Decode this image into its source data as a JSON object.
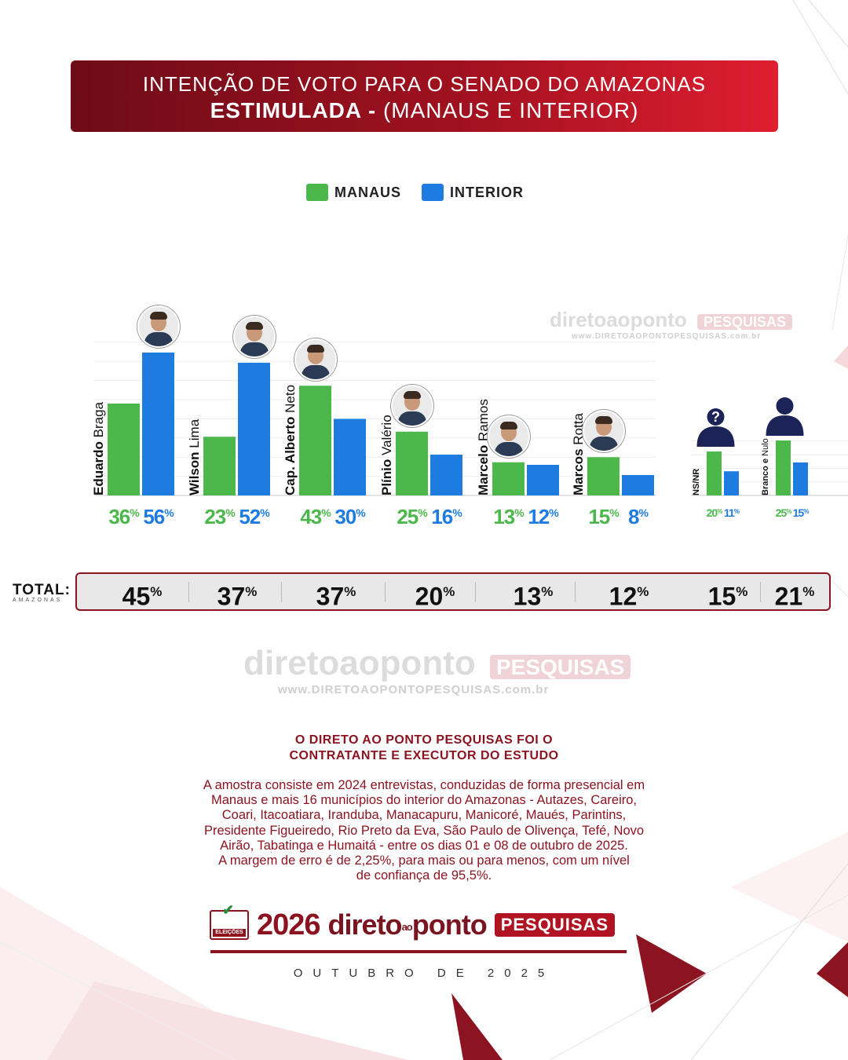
{
  "header": {
    "line1": "INTENÇÃO DE VOTO PARA O SENADO DO AMAZONAS",
    "line2_bold": "ESTIMULADA -",
    "line2_rest": "(MANAUS E INTERIOR)"
  },
  "legend": [
    {
      "label": "MANAUS",
      "color": "#4cb84c"
    },
    {
      "label": "INTERIOR",
      "color": "#1e7be0"
    }
  ],
  "colors": {
    "manaus": "#4cb84c",
    "interior": "#1e7be0",
    "brand": "#8b1420",
    "silhouette": "#1c2457"
  },
  "watermark": {
    "brand": "diretoaoponto",
    "badge": "PESQUISAS",
    "site": "www.DIRETOAOPONTOPESQUISAS.com.br"
  },
  "chart_data": {
    "type": "bar",
    "series": [
      {
        "name": "MANAUS",
        "values": [
          36,
          23,
          43,
          25,
          13,
          15,
          20,
          25
        ]
      },
      {
        "name": "INTERIOR",
        "values": [
          56,
          52,
          30,
          16,
          12,
          8,
          11,
          15
        ]
      }
    ],
    "candidates": [
      {
        "first": "Eduardo",
        "last": "Braga",
        "manaus": 36,
        "interior": 56,
        "total": 45,
        "photo": true
      },
      {
        "first": "Wilson",
        "last": "Lima",
        "manaus": 23,
        "interior": 52,
        "total": 37,
        "photo": true
      },
      {
        "first": "Cap. Alberto",
        "last": "Neto",
        "manaus": 43,
        "interior": 30,
        "total": 37,
        "photo": true
      },
      {
        "first": "Plínio",
        "last": "Valério",
        "manaus": 25,
        "interior": 16,
        "total": 20,
        "photo": true
      },
      {
        "first": "Marcelo",
        "last": "Ramos",
        "manaus": 13,
        "interior": 12,
        "total": 13,
        "photo": true
      },
      {
        "first": "Marcos",
        "last": "Rotta",
        "manaus": 15,
        "interior": 8,
        "total": 12,
        "photo": true
      },
      {
        "first": "NS/NR",
        "last": "",
        "manaus": 20,
        "interior": 11,
        "total": 15,
        "photo": false,
        "icon": "question-silhouette-icon"
      },
      {
        "first": "Branco e",
        "last": "Nulo",
        "manaus": 25,
        "interior": 15,
        "total": 21,
        "photo": false,
        "icon": "person-silhouette-icon"
      }
    ],
    "value_suffix": "%",
    "ylim": [
      0,
      60
    ],
    "grid": true
  },
  "total": {
    "label": "TOTAL:",
    "sublabel": "AMAZONAS"
  },
  "contract": {
    "line1": "O DIRETO AO PONTO PESQUISAS FOI O",
    "line2": "CONTRATANTE E EXECUTOR DO ESTUDO"
  },
  "methodology": [
    "A amostra consiste em 2024 entrevistas, conduzidas de forma presencial em",
    "Manaus e mais 16 municípios do interior do Amazonas - Autazes, Careiro,",
    "Coari, Itacoatiara, Iranduba, Manacapuru, Manicoré, Maués, Parintins,",
    "Presidente Figueiredo, Rio Preto da Eva, São Paulo de Olivença, Tefé, Novo",
    "Airão, Tabatinga e Humaitá - entre os dias 01 e 08 de outubro de 2025.",
    "A margem de erro é de 2,25%, para mais ou para menos, com um nível",
    "de confiança de 95,5%."
  ],
  "footer": {
    "elections_label": "ELEIÇÕES",
    "year": "2026",
    "brand_a": "direto",
    "brand_small": "ao",
    "brand_b": "ponto",
    "badge": "PESQUISAS",
    "date": "OUTUBRO DE 2025"
  }
}
